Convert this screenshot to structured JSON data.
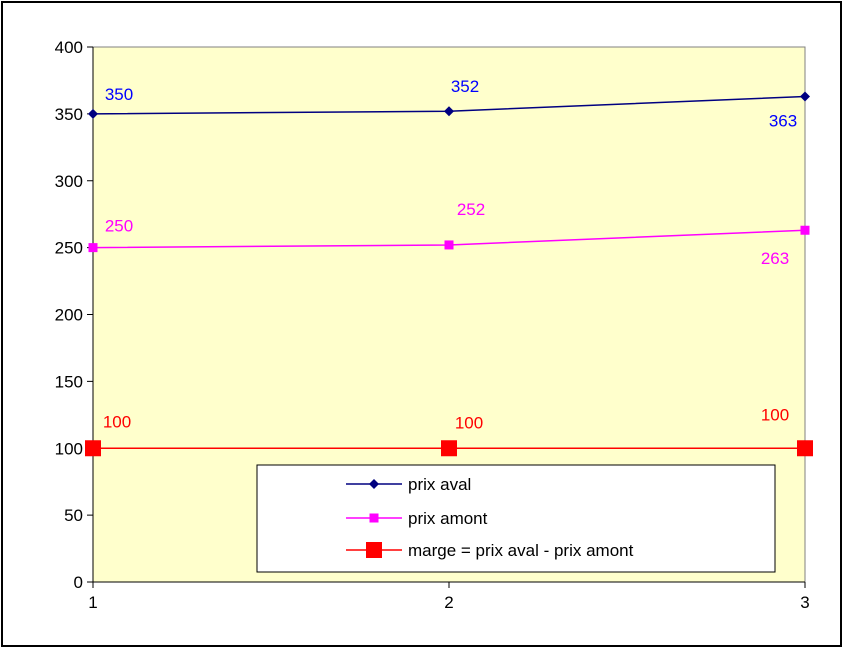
{
  "chart_data": {
    "type": "line",
    "title": "",
    "xlabel": "",
    "ylabel": "",
    "x": [
      1,
      2,
      3
    ],
    "ylim": [
      0,
      400
    ],
    "yticks": [
      0,
      50,
      100,
      150,
      200,
      250,
      300,
      350,
      400
    ],
    "xticks": [
      "1",
      "2",
      "3"
    ],
    "grid": false,
    "plot_background": "#FFFFCC",
    "legend": "bottom-center",
    "series": [
      {
        "name": "prix aval",
        "values": [
          350,
          352,
          363
        ],
        "color": "#000080",
        "label_color": "#0000FF",
        "marker": "diamond",
        "data_labels": [
          "350",
          "352",
          "363"
        ]
      },
      {
        "name": "prix amont",
        "values": [
          250,
          252,
          263
        ],
        "color": "#FF00FF",
        "label_color": "#FF00FF",
        "marker": "square",
        "data_labels": [
          "250",
          "252",
          "263"
        ]
      },
      {
        "name": "marge = prix aval - prix amont",
        "values": [
          100,
          100,
          100
        ],
        "color": "#FF0000",
        "label_color": "#FF0000",
        "marker": "square-large",
        "data_labels": [
          "100",
          "100",
          "100"
        ]
      }
    ]
  }
}
